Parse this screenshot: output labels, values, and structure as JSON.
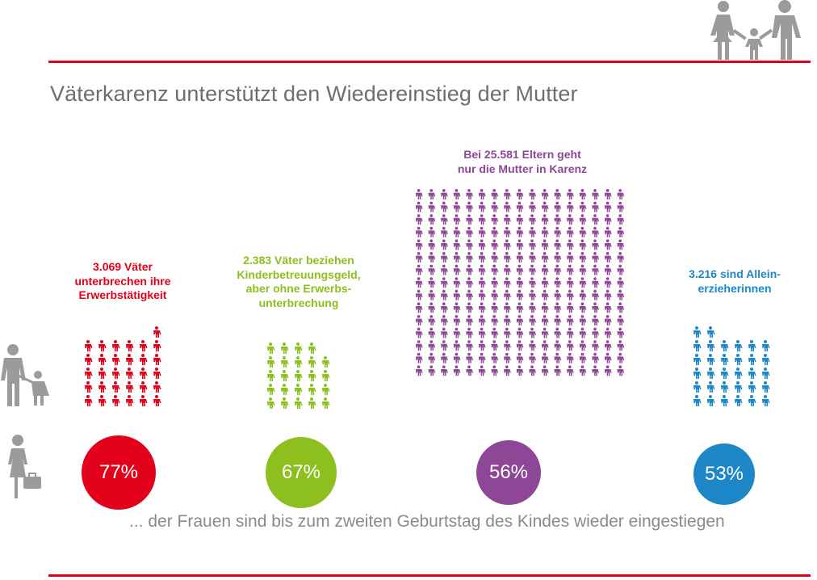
{
  "title": "Väterkarenz unterstützt den Wiedereinstieg der Mutter",
  "footnote": "... der Frauen sind bis zum zweiten Geburtstag des Kindes wieder eingestiegen",
  "colors": {
    "rule": "#e3001b",
    "icon_gray": "#9b9b9b",
    "red": "#e3001b",
    "green": "#8dbf1f",
    "purple": "#8e4796",
    "blue": "#1e87c8"
  },
  "icons": {
    "header": "family-icon",
    "row1": "parent-with-child-icon",
    "row2": "working-woman-icon"
  },
  "chart_data": {
    "type": "pictogram",
    "title": "Väterkarenz unterstützt den Wiedereinstieg der Mutter",
    "note": "... der Frauen sind bis zum zweiten Geburtstag des Kindes wieder eingestiegen",
    "groups": [
      {
        "key": "red",
        "label": "3.069 Väter\nunterbrechen ihre\nErwerbstätigkeit",
        "count": 3069,
        "icon_count": 31,
        "percent_label": "77%",
        "percent": 77,
        "color": "#e3001b"
      },
      {
        "key": "green",
        "label": "2.383 Väter beziehen\nKinderbetreuungsgeld,\naber ohne Erwerbs-\nunterbrechung",
        "count": 2383,
        "icon_count": 24,
        "percent_label": "67%",
        "percent": 67,
        "color": "#8dbf1f"
      },
      {
        "key": "purple",
        "label": "Bei 25.581 Eltern geht\nnur die Mutter in Karenz",
        "count": 25581,
        "icon_count": 255,
        "percent_label": "56%",
        "percent": 56,
        "color": "#8e4796"
      },
      {
        "key": "blue",
        "label": "3.216 sind Allein-\nerzieherinnen",
        "count": 3216,
        "icon_count": 32,
        "percent_label": "53%",
        "percent": 53,
        "color": "#1e87c8"
      }
    ]
  }
}
